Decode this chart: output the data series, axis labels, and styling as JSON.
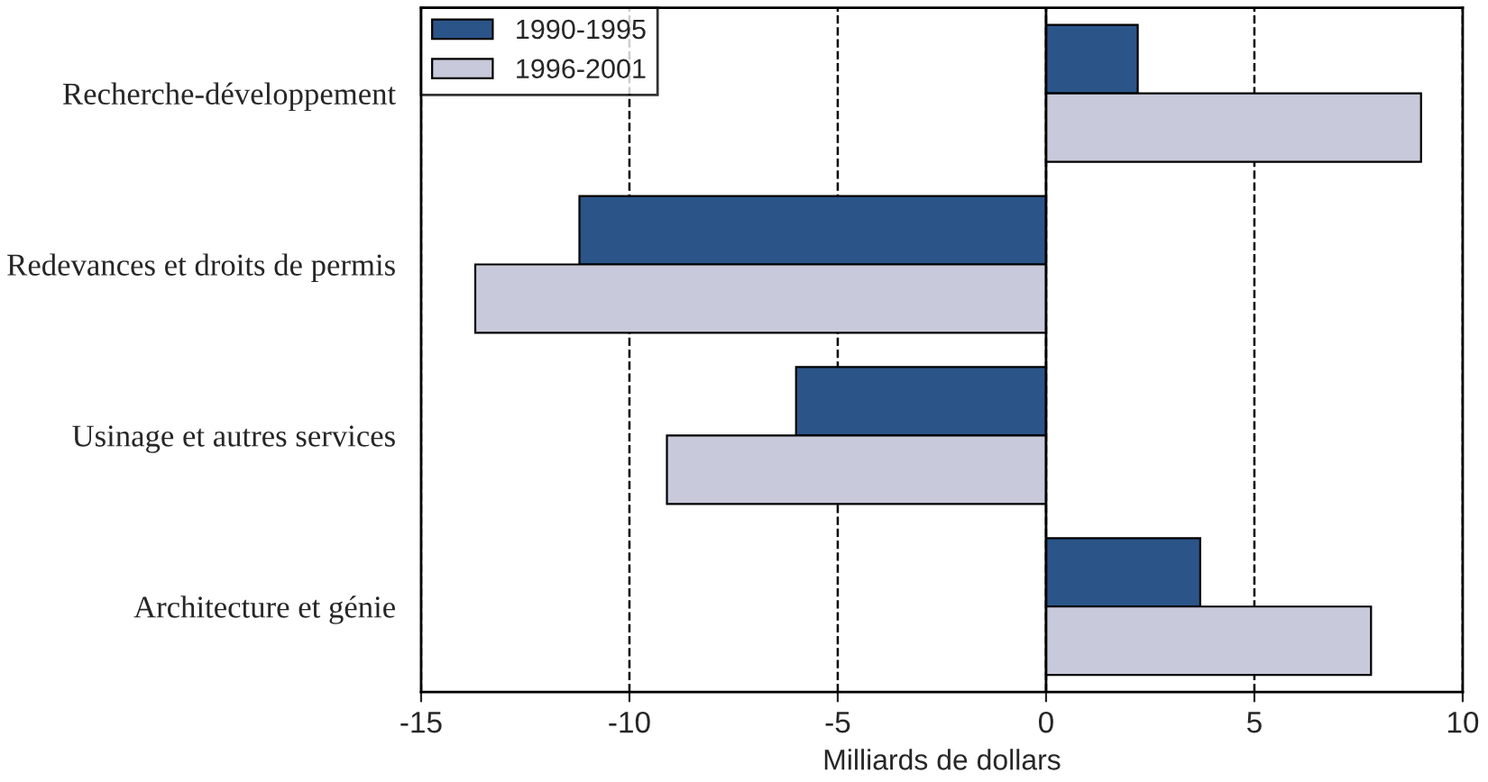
{
  "chart_data": {
    "type": "bar",
    "orientation": "horizontal",
    "xlabel": "Milliards de dollars",
    "categories": [
      "Recherche-développement",
      "Redevances et droits de permis",
      "Usinage et autres services",
      "Architecture et génie"
    ],
    "series": [
      {
        "name": "1990-1995",
        "color": "#2b5589",
        "values": [
          2.2,
          -11.2,
          -6.0,
          3.7
        ]
      },
      {
        "name": "1996-2001",
        "color": "#c8cadb",
        "values": [
          9.0,
          -13.7,
          -9.1,
          7.8
        ]
      }
    ],
    "xlim": [
      -15,
      10
    ],
    "xticks": [
      -15,
      -10,
      -5,
      0,
      5,
      10
    ],
    "grid": "x",
    "line_style": "dashed",
    "legend": "top left",
    "ref_lines": [
      {
        "axis": "x",
        "value": 0,
        "color": "#000000",
        "line_style": "solid"
      }
    ]
  }
}
